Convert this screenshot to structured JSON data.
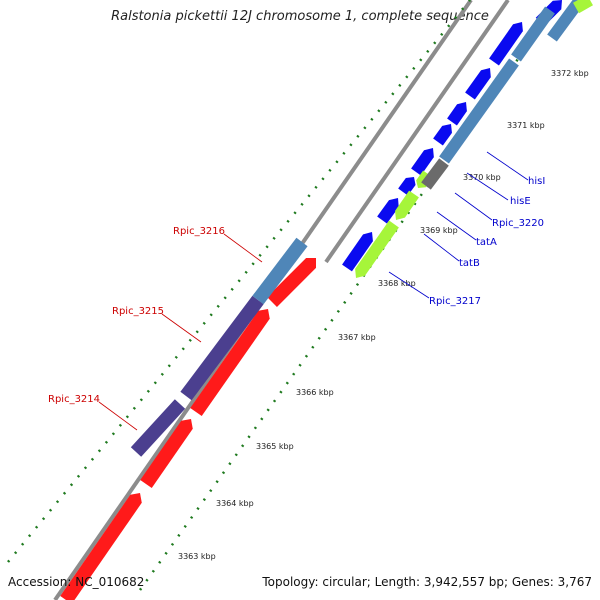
{
  "title": "Ralstonia pickettii 12J chromosome 1, complete sequence",
  "accession": "Accession: NC_010682",
  "summary": "Topology: circular; Length: 3,942,557 bp; Genes: 3,767",
  "colors": {
    "backbone": "#8c8c8c",
    "tick": "#1f7a1f",
    "red_gene": "#ff1a1a",
    "purple_gene": "#4b3f8f",
    "steel_gene": "#4f86b8",
    "blue_gene": "#0a0af0",
    "green_gene": "#a6f53a",
    "gray_gene": "#6b6b6b",
    "label_red": "#cc0000",
    "label_blue": "#0000cc"
  },
  "kbp_labels": [
    "3363 kbp",
    "3364 kbp",
    "3365 kbp",
    "3366 kbp",
    "3367 kbp",
    "3368 kbp",
    "3369 kbp",
    "3370 kbp",
    "3371 kbp",
    "3372 kbp"
  ],
  "gene_labels_left": [
    "Rpic_3216",
    "Rpic_3215",
    "Rpic_3214"
  ],
  "gene_labels_right": [
    "hisI",
    "hisE",
    "Rpic_3220",
    "tatA",
    "tatB",
    "Rpic_3217"
  ]
}
